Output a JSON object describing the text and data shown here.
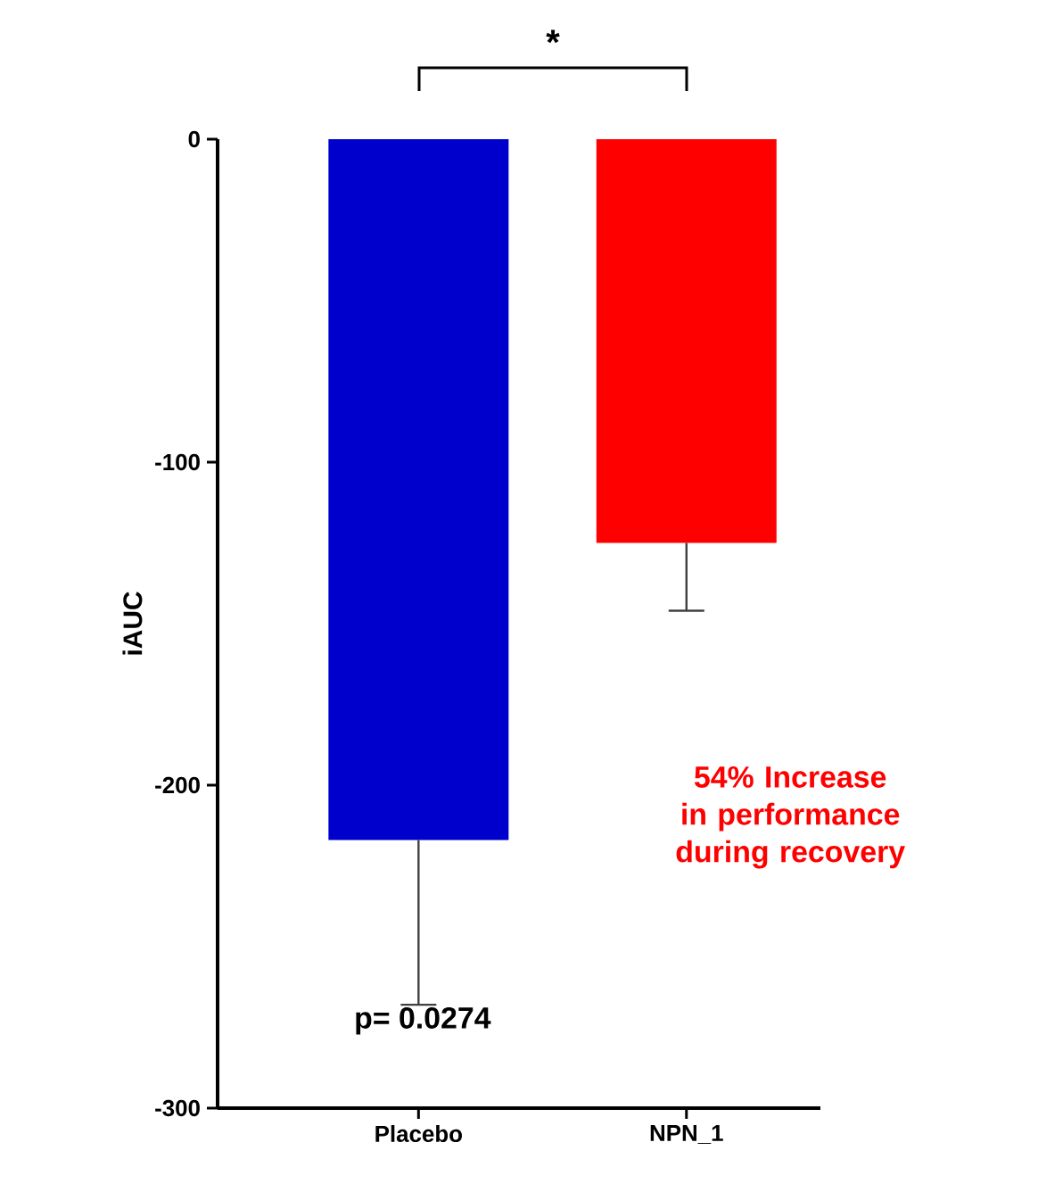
{
  "chart_data": {
    "type": "bar",
    "ylabel": "iAUC",
    "categories": [
      "Placebo",
      "NPN_1"
    ],
    "values": [
      -217,
      -125
    ],
    "errors": [
      [
        -268,
        -217
      ],
      [
        -146,
        -125
      ]
    ],
    "colors": [
      "#0000cc",
      "#ff0000"
    ],
    "ylim": [
      -300,
      0
    ],
    "yticks": [
      0,
      -100,
      -200,
      -300
    ],
    "grid": false,
    "annotations": [
      "*",
      "p= 0.0274",
      "54% Increase in performance during recovery"
    ]
  }
}
